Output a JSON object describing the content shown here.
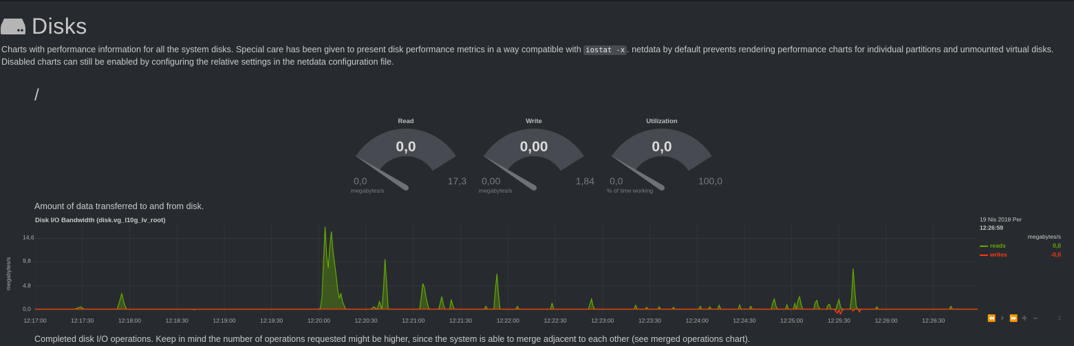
{
  "section": {
    "title": "Disks",
    "description_before_code": "Charts with performance information for all the system disks. Special care has been given to present disk performance metrics in a way compatible with ",
    "code": "iostat -x",
    "description_after_code": ". netdata by default prevents rendering performance charts for individual partitions and unmounted virtual disks. Disabled charts can still be enabled by configuring the relative settings in the netdata configuration file.",
    "mount": "/"
  },
  "gauges": [
    {
      "title": "Read",
      "value": "0,0",
      "min": "0,0",
      "max": "17,3",
      "units": "megabytes/s",
      "fraction": 0
    },
    {
      "title": "Write",
      "value": "0,00",
      "min": "0,00",
      "max": "1,84",
      "units": "megabytes/s",
      "fraction": 0
    },
    {
      "title": "Utilization",
      "value": "0,0",
      "min": "0,0",
      "max": "100,0",
      "units": "% of time working",
      "fraction": 0
    }
  ],
  "chart": {
    "info": "Amount of data transferred to and from disk.",
    "title": "Disk I/O Bandwidth (disk.vg_l10g_lv_root)",
    "ylabel": "megabytes/s",
    "legend": {
      "date": "19 Nis 2018 Per",
      "time": "12:26:59",
      "units": "megabytes/s",
      "reads_label": "reads",
      "reads_value": "0,0",
      "writes_label": "writes",
      "writes_value": "-0,0"
    }
  },
  "chart_data": {
    "type": "area",
    "title": "Disk I/O Bandwidth (disk.vg_l10g_lv_root)",
    "ylabel": "megabytes/s",
    "ylim": [
      -1.2,
      17.5
    ],
    "yticks": [
      0.0,
      4.8,
      9.8,
      14.6
    ],
    "ytick_labels": [
      "0,0",
      "4,8",
      "9,8",
      "14,6"
    ],
    "x_range_seconds": [
      0,
      598
    ],
    "xticks": [
      "12:17:00",
      "12:17:30",
      "12:18:00",
      "12:18:30",
      "12:19:00",
      "12:19:30",
      "12:20:00",
      "12:20:30",
      "12:21:00",
      "12:21:30",
      "12:22:00",
      "12:22:30",
      "12:23:00",
      "12:23:30",
      "12:24:00",
      "12:24:30",
      "12:25:00",
      "12:25:30",
      "12:26:00",
      "12:26:30"
    ],
    "colors": {
      "reads": "#66aa00",
      "writes": "#fe3912"
    },
    "series": [
      {
        "name": "reads",
        "points": [
          [
            0,
            0
          ],
          [
            25,
            0
          ],
          [
            29,
            0.5
          ],
          [
            31,
            0
          ],
          [
            52,
            0
          ],
          [
            53.5,
            1.5
          ],
          [
            55,
            3.2
          ],
          [
            56.5,
            1.2
          ],
          [
            58,
            0
          ],
          [
            180,
            0
          ],
          [
            181,
            0.2
          ],
          [
            182,
            2.5
          ],
          [
            183,
            10
          ],
          [
            184,
            17
          ],
          [
            185,
            11
          ],
          [
            186,
            8.5
          ],
          [
            187,
            13
          ],
          [
            188,
            16
          ],
          [
            189,
            12
          ],
          [
            190,
            9.5
          ],
          [
            191,
            7
          ],
          [
            192,
            4
          ],
          [
            193,
            2.2
          ],
          [
            194,
            3.3
          ],
          [
            195,
            1.6
          ],
          [
            196,
            0.8
          ],
          [
            197,
            0
          ],
          [
            213,
            0
          ],
          [
            215,
            0.5
          ],
          [
            217,
            0
          ],
          [
            218.5,
            1.6
          ],
          [
            220,
            0
          ],
          [
            221,
            4
          ],
          [
            222,
            10.3
          ],
          [
            223,
            5.5
          ],
          [
            224,
            0
          ],
          [
            244,
            0
          ],
          [
            245,
            2.5
          ],
          [
            246,
            5.3
          ],
          [
            247,
            4.4
          ],
          [
            248,
            2.5
          ],
          [
            249,
            1
          ],
          [
            250,
            0
          ],
          [
            256,
            0
          ],
          [
            257,
            1.2
          ],
          [
            258,
            2.6
          ],
          [
            259,
            1
          ],
          [
            260,
            0
          ],
          [
            263,
            0
          ],
          [
            264,
            2
          ],
          [
            265,
            0.8
          ],
          [
            266,
            0
          ],
          [
            285,
            0
          ],
          [
            286,
            0.6
          ],
          [
            287,
            0
          ],
          [
            291,
            0
          ],
          [
            292,
            4
          ],
          [
            293,
            7.3
          ],
          [
            294,
            3
          ],
          [
            295,
            0
          ],
          [
            305,
            0
          ],
          [
            306,
            0.6
          ],
          [
            307,
            0
          ],
          [
            327,
            0
          ],
          [
            328,
            1.3
          ],
          [
            329,
            0
          ],
          [
            351,
            0
          ],
          [
            352,
            1
          ],
          [
            353,
            2.1
          ],
          [
            354,
            0.7
          ],
          [
            355,
            0
          ],
          [
            380,
            0
          ],
          [
            381,
            0.8
          ],
          [
            382,
            0
          ],
          [
            387,
            0
          ],
          [
            388,
            0.4
          ],
          [
            389,
            0
          ],
          [
            395,
            0
          ],
          [
            396,
            0.5
          ],
          [
            397,
            0
          ],
          [
            404,
            0
          ],
          [
            405,
            0.4
          ],
          [
            406,
            0
          ],
          [
            421,
            0
          ],
          [
            422,
            0.6
          ],
          [
            423,
            0
          ],
          [
            427,
            0
          ],
          [
            428,
            0.5
          ],
          [
            429,
            0
          ],
          [
            433,
            0
          ],
          [
            434,
            0.8
          ],
          [
            435,
            0
          ],
          [
            446,
            0
          ],
          [
            447,
            0.9
          ],
          [
            448,
            0
          ],
          [
            453,
            0
          ],
          [
            454,
            0.6
          ],
          [
            455,
            0
          ],
          [
            467,
            0
          ],
          [
            468,
            1.3
          ],
          [
            469,
            2.1
          ],
          [
            470,
            0.7
          ],
          [
            471,
            0
          ],
          [
            476,
            0
          ],
          [
            477,
            0.9
          ],
          [
            478,
            0
          ],
          [
            481,
            0
          ],
          [
            482,
            1.2
          ],
          [
            483,
            0
          ],
          [
            484,
            1.8
          ],
          [
            485,
            2.6
          ],
          [
            486,
            1
          ],
          [
            487,
            0
          ],
          [
            494,
            0
          ],
          [
            495,
            1.4
          ],
          [
            496,
            1.8
          ],
          [
            497,
            0.5
          ],
          [
            498,
            0
          ],
          [
            502,
            0
          ],
          [
            503,
            0.8
          ],
          [
            504,
            1
          ],
          [
            505,
            0
          ],
          [
            508,
            0
          ],
          [
            509,
            1
          ],
          [
            510,
            2
          ],
          [
            511,
            0.5
          ],
          [
            512,
            0
          ],
          [
            517,
            0
          ],
          [
            518,
            2.5
          ],
          [
            519,
            8.4
          ],
          [
            520,
            4
          ],
          [
            521,
            0.5
          ],
          [
            522,
            0
          ],
          [
            533,
            0
          ],
          [
            534,
            0.5
          ],
          [
            535,
            0
          ],
          [
            580,
            0
          ],
          [
            581,
            0.6
          ],
          [
            582,
            0
          ],
          [
            598,
            0
          ]
        ]
      },
      {
        "name": "writes",
        "points": [
          [
            0,
            0
          ],
          [
            100,
            0
          ],
          [
            101,
            -0.1
          ],
          [
            102,
            0
          ],
          [
            300,
            0
          ],
          [
            400,
            0
          ],
          [
            507,
            0
          ],
          [
            508,
            -0.5
          ],
          [
            509,
            -0.8
          ],
          [
            510,
            -0.2
          ],
          [
            511,
            -1
          ],
          [
            512,
            -0.3
          ],
          [
            513,
            0
          ],
          [
            518,
            0
          ],
          [
            519,
            -0.4
          ],
          [
            520,
            0
          ],
          [
            522,
            0
          ],
          [
            523,
            -0.6
          ],
          [
            524,
            0
          ],
          [
            598,
            0
          ]
        ]
      }
    ]
  },
  "toolbox": [
    {
      "name": "pan-left-icon",
      "glyph": "⏪"
    },
    {
      "name": "reset-icon",
      "glyph": "⏵"
    },
    {
      "name": "pan-right-icon",
      "glyph": "⏩"
    },
    {
      "name": "zoom-in-icon",
      "glyph": "✚"
    },
    {
      "name": "zoom-out-icon",
      "glyph": "━"
    }
  ],
  "resize_glyph": "⇕",
  "next_chart": {
    "info": "Completed disk I/O operations. Keep in mind the number of operations requested might be higher, since the system is able to merge adjacent to each other (see merged operations chart)."
  }
}
